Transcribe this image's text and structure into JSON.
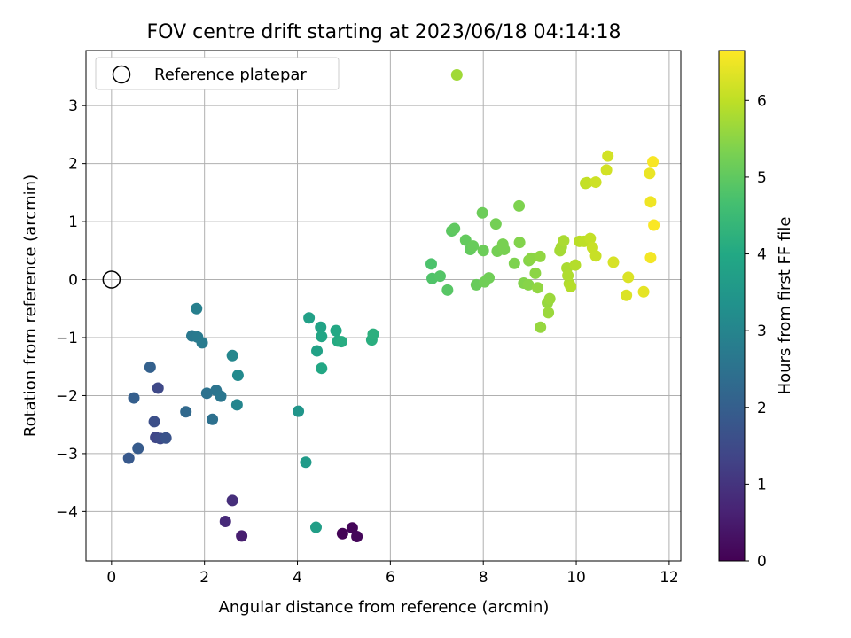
{
  "chart_data": {
    "type": "scatter",
    "title": "FOV centre drift starting at 2023/06/18 04:14:18",
    "xlabel": "Angular distance from reference (arcmin)",
    "ylabel": "Rotation from reference (arcmin)",
    "xlim": [
      -0.55,
      12.25
    ],
    "ylim": [
      -4.85,
      3.95
    ],
    "xticks": [
      0,
      2,
      4,
      6,
      8,
      10,
      12
    ],
    "yticks": [
      -4,
      -3,
      -2,
      -1,
      0,
      1,
      2,
      3
    ],
    "grid": true,
    "legend": {
      "position": "top-left",
      "entries": [
        "Reference platepar"
      ]
    },
    "reference": {
      "x": 0,
      "y": 0
    },
    "colorbar": {
      "label": "Hours from first FF file",
      "range": [
        0,
        6.65
      ],
      "ticks": [
        0,
        1,
        2,
        3,
        4,
        5,
        6
      ],
      "colormap": "viridis"
    },
    "points": [
      {
        "x": 4.97,
        "y": -4.38,
        "h": 0.05
      },
      {
        "x": 5.18,
        "y": -4.28,
        "h": 0.08
      },
      {
        "x": 5.28,
        "y": -4.43,
        "h": 0.12
      },
      {
        "x": 2.8,
        "y": -4.42,
        "h": 0.55
      },
      {
        "x": 2.45,
        "y": -4.17,
        "h": 0.8
      },
      {
        "x": 2.6,
        "y": -3.81,
        "h": 0.9
      },
      {
        "x": 0.95,
        "y": -2.72,
        "h": 1.4
      },
      {
        "x": 1.05,
        "y": -2.74,
        "h": 1.5
      },
      {
        "x": 1.0,
        "y": -1.87,
        "h": 1.45
      },
      {
        "x": 0.92,
        "y": -2.45,
        "h": 1.6
      },
      {
        "x": 1.17,
        "y": -2.73,
        "h": 1.7
      },
      {
        "x": 0.37,
        "y": -3.08,
        "h": 1.85
      },
      {
        "x": 0.57,
        "y": -2.91,
        "h": 1.9
      },
      {
        "x": 0.48,
        "y": -2.04,
        "h": 2.0
      },
      {
        "x": 0.83,
        "y": -1.51,
        "h": 2.05
      },
      {
        "x": 1.6,
        "y": -2.28,
        "h": 2.25
      },
      {
        "x": 2.17,
        "y": -2.41,
        "h": 2.45
      },
      {
        "x": 2.05,
        "y": -1.96,
        "h": 2.5
      },
      {
        "x": 2.25,
        "y": -1.91,
        "h": 2.55
      },
      {
        "x": 2.35,
        "y": -2.01,
        "h": 2.6
      },
      {
        "x": 1.73,
        "y": -0.97,
        "h": 2.65
      },
      {
        "x": 1.85,
        "y": -0.99,
        "h": 2.7
      },
      {
        "x": 1.95,
        "y": -1.09,
        "h": 2.75
      },
      {
        "x": 1.83,
        "y": -0.5,
        "h": 2.85
      },
      {
        "x": 2.7,
        "y": -2.16,
        "h": 3.0
      },
      {
        "x": 2.6,
        "y": -1.31,
        "h": 3.05
      },
      {
        "x": 2.72,
        "y": -1.65,
        "h": 3.15
      },
      {
        "x": 4.02,
        "y": -2.27,
        "h": 3.45
      },
      {
        "x": 4.18,
        "y": -3.15,
        "h": 3.6
      },
      {
        "x": 4.4,
        "y": -4.27,
        "h": 3.7
      },
      {
        "x": 4.25,
        "y": -0.66,
        "h": 3.75
      },
      {
        "x": 4.42,
        "y": -1.23,
        "h": 3.8
      },
      {
        "x": 4.5,
        "y": -0.82,
        "h": 3.85
      },
      {
        "x": 4.52,
        "y": -0.98,
        "h": 3.9
      },
      {
        "x": 4.52,
        "y": -1.53,
        "h": 3.95
      },
      {
        "x": 4.83,
        "y": -0.88,
        "h": 4.0
      },
      {
        "x": 4.87,
        "y": -1.06,
        "h": 4.05
      },
      {
        "x": 4.95,
        "y": -1.07,
        "h": 4.1
      },
      {
        "x": 5.6,
        "y": -1.04,
        "h": 4.15
      },
      {
        "x": 5.63,
        "y": -0.94,
        "h": 4.2
      },
      {
        "x": 6.88,
        "y": 0.27,
        "h": 4.75
      },
      {
        "x": 6.9,
        "y": 0.02,
        "h": 4.8
      },
      {
        "x": 7.07,
        "y": 0.06,
        "h": 4.85
      },
      {
        "x": 7.23,
        "y": -0.18,
        "h": 4.9
      },
      {
        "x": 7.32,
        "y": 0.84,
        "h": 4.95
      },
      {
        "x": 7.38,
        "y": 0.88,
        "h": 5.0
      },
      {
        "x": 7.62,
        "y": 0.68,
        "h": 5.05
      },
      {
        "x": 7.72,
        "y": 0.52,
        "h": 5.05
      },
      {
        "x": 7.78,
        "y": 0.58,
        "h": 5.1
      },
      {
        "x": 7.85,
        "y": -0.09,
        "h": 5.1
      },
      {
        "x": 7.98,
        "y": 1.15,
        "h": 5.15
      },
      {
        "x": 8.0,
        "y": 0.5,
        "h": 5.15
      },
      {
        "x": 8.03,
        "y": -0.04,
        "h": 5.2
      },
      {
        "x": 8.12,
        "y": 0.03,
        "h": 5.2
      },
      {
        "x": 8.27,
        "y": 0.96,
        "h": 5.25
      },
      {
        "x": 8.3,
        "y": 0.49,
        "h": 5.25
      },
      {
        "x": 8.42,
        "y": 0.61,
        "h": 5.3
      },
      {
        "x": 8.45,
        "y": 0.52,
        "h": 5.3
      },
      {
        "x": 8.67,
        "y": 0.28,
        "h": 5.35
      },
      {
        "x": 8.77,
        "y": 1.27,
        "h": 5.35
      },
      {
        "x": 8.78,
        "y": 0.64,
        "h": 5.4
      },
      {
        "x": 8.87,
        "y": -0.06,
        "h": 5.4
      },
      {
        "x": 8.97,
        "y": -0.09,
        "h": 5.45
      },
      {
        "x": 8.98,
        "y": 0.33,
        "h": 5.45
      },
      {
        "x": 9.03,
        "y": 0.37,
        "h": 5.5
      },
      {
        "x": 9.12,
        "y": 0.11,
        "h": 5.5
      },
      {
        "x": 9.17,
        "y": -0.14,
        "h": 5.55
      },
      {
        "x": 9.22,
        "y": 0.4,
        "h": 5.55
      },
      {
        "x": 9.23,
        "y": -0.82,
        "h": 5.6
      },
      {
        "x": 9.38,
        "y": -0.4,
        "h": 5.6
      },
      {
        "x": 9.4,
        "y": -0.57,
        "h": 5.65
      },
      {
        "x": 9.43,
        "y": -0.33,
        "h": 5.65
      },
      {
        "x": 7.43,
        "y": 3.53,
        "h": 5.7
      },
      {
        "x": 9.65,
        "y": 0.5,
        "h": 5.75
      },
      {
        "x": 9.68,
        "y": 0.56,
        "h": 5.75
      },
      {
        "x": 9.73,
        "y": 0.67,
        "h": 5.8
      },
      {
        "x": 9.8,
        "y": 0.2,
        "h": 5.8
      },
      {
        "x": 9.82,
        "y": 0.07,
        "h": 5.85
      },
      {
        "x": 9.85,
        "y": -0.07,
        "h": 5.85
      },
      {
        "x": 9.88,
        "y": -0.12,
        "h": 5.9
      },
      {
        "x": 9.98,
        "y": 0.25,
        "h": 5.9
      },
      {
        "x": 10.07,
        "y": 0.66,
        "h": 5.95
      },
      {
        "x": 10.17,
        "y": 0.66,
        "h": 6.0
      },
      {
        "x": 10.2,
        "y": 1.66,
        "h": 6.0
      },
      {
        "x": 10.23,
        "y": 1.67,
        "h": 6.05
      },
      {
        "x": 10.3,
        "y": 0.71,
        "h": 6.05
      },
      {
        "x": 10.35,
        "y": 0.55,
        "h": 6.1
      },
      {
        "x": 10.42,
        "y": 0.41,
        "h": 6.1
      },
      {
        "x": 10.42,
        "y": 1.68,
        "h": 6.15
      },
      {
        "x": 10.65,
        "y": 1.89,
        "h": 6.2
      },
      {
        "x": 10.68,
        "y": 2.13,
        "h": 6.2
      },
      {
        "x": 10.8,
        "y": 0.3,
        "h": 6.25
      },
      {
        "x": 11.08,
        "y": -0.27,
        "h": 6.3
      },
      {
        "x": 11.12,
        "y": 0.04,
        "h": 6.3
      },
      {
        "x": 11.45,
        "y": -0.21,
        "h": 6.4
      },
      {
        "x": 11.58,
        "y": 1.83,
        "h": 6.45
      },
      {
        "x": 11.6,
        "y": 1.34,
        "h": 6.5
      },
      {
        "x": 11.6,
        "y": 0.38,
        "h": 6.55
      },
      {
        "x": 11.65,
        "y": 2.03,
        "h": 6.6
      },
      {
        "x": 11.67,
        "y": 0.94,
        "h": 6.62
      }
    ]
  }
}
